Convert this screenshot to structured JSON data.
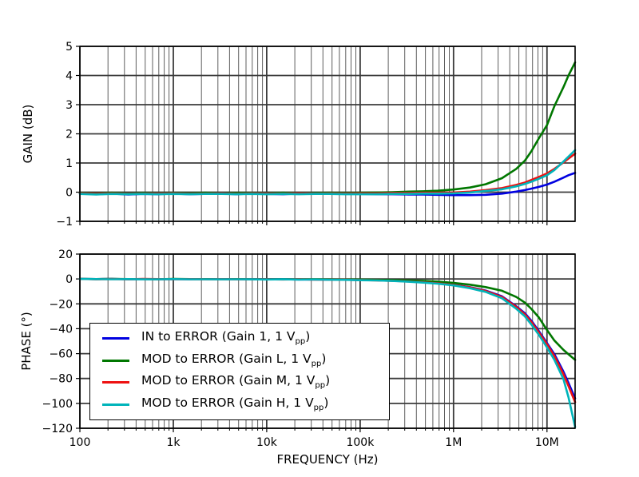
{
  "figure": {
    "background": "#ffffff",
    "frame_color": "#000000",
    "grid_major_color": "#3b3b3b",
    "grid_minor_color": "#5e5e5e"
  },
  "legend": {
    "items": [
      {
        "color": "#0000e0",
        "pre": "IN to ERROR (Gain 1, 1 V",
        "sub": "pp",
        "post": ")"
      },
      {
        "color": "#007700",
        "pre": "MOD to ERROR (Gain L, 1 V",
        "sub": "pp",
        "post": ")"
      },
      {
        "color": "#ee1111",
        "pre": "MOD to ERROR (Gain M, 1 V",
        "sub": "pp",
        "post": ")"
      },
      {
        "color": "#00b4ba",
        "pre": "MOD to ERROR (Gain H, 1 V",
        "sub": "pp",
        "post": ")"
      }
    ]
  },
  "chart_data": [
    {
      "type": "line",
      "title": "",
      "ylabel": "GAIN (dB)",
      "xlabel": "",
      "xscale": "log",
      "xlim": [
        100,
        20000000
      ],
      "ylim": [
        -1,
        5
      ],
      "grid": "on",
      "legend_position": "none",
      "yticks": {
        "values": [
          5,
          4,
          3,
          2,
          1,
          0,
          -1
        ],
        "labels": [
          "5",
          "4",
          "3",
          "2",
          "1",
          "0",
          "−1"
        ]
      },
      "xticks": {
        "values": [
          100,
          1000,
          10000,
          100000,
          1000000,
          10000000
        ],
        "labels": [
          "100",
          "1k",
          "10k",
          "100k",
          "1M",
          "10M"
        ],
        "show_labels": false
      },
      "x": [
        100,
        150,
        220,
        330,
        470,
        680,
        1000,
        1500,
        2200,
        3300,
        4700,
        6800,
        10000,
        15000,
        22000,
        33000,
        47000,
        68000,
        100000,
        150000,
        220000,
        330000,
        470000,
        680000,
        1000000,
        1500000,
        2200000,
        3300000,
        4700000,
        5800000,
        6800000,
        8200000,
        10000000,
        12000000,
        15000000,
        17000000,
        20000000
      ],
      "series": [
        {
          "name": "IN to ERROR (Gain 1, 1 Vpp)",
          "color": "#0000e0",
          "values": [
            -0.05,
            -0.07,
            -0.05,
            -0.08,
            -0.06,
            -0.07,
            -0.05,
            -0.07,
            -0.06,
            -0.05,
            -0.07,
            -0.05,
            -0.06,
            -0.07,
            -0.05,
            -0.06,
            -0.05,
            -0.06,
            -0.06,
            -0.07,
            -0.07,
            -0.08,
            -0.08,
            -0.09,
            -0.1,
            -0.1,
            -0.09,
            -0.05,
            0.02,
            0.07,
            0.12,
            0.18,
            0.26,
            0.36,
            0.5,
            0.58,
            0.66
          ]
        },
        {
          "name": "MOD to ERROR (Gain L, 1 Vpp)",
          "color": "#007700",
          "values": [
            -0.03,
            -0.05,
            -0.02,
            -0.05,
            -0.03,
            -0.04,
            -0.03,
            -0.04,
            -0.02,
            -0.04,
            -0.03,
            -0.03,
            -0.04,
            -0.02,
            -0.04,
            -0.03,
            -0.02,
            -0.03,
            -0.02,
            -0.01,
            0.0,
            0.02,
            0.03,
            0.05,
            0.09,
            0.16,
            0.27,
            0.48,
            0.8,
            1.08,
            1.4,
            1.85,
            2.3,
            2.95,
            3.6,
            4.0,
            4.45
          ]
        },
        {
          "name": "MOD to ERROR (Gain M, 1 Vpp)",
          "color": "#ee1111",
          "values": [
            -0.04,
            -0.06,
            -0.04,
            -0.06,
            -0.05,
            -0.05,
            -0.04,
            -0.06,
            -0.05,
            -0.04,
            -0.06,
            -0.04,
            -0.05,
            -0.05,
            -0.04,
            -0.05,
            -0.04,
            -0.05,
            -0.04,
            -0.04,
            -0.03,
            -0.03,
            -0.02,
            -0.02,
            -0.01,
            0.02,
            0.07,
            0.14,
            0.25,
            0.33,
            0.42,
            0.52,
            0.64,
            0.8,
            1.02,
            1.15,
            1.32
          ]
        },
        {
          "name": "MOD to ERROR (Gain H, 1 Vpp)",
          "color": "#00b4ba",
          "values": [
            -0.06,
            -0.08,
            -0.06,
            -0.07,
            -0.06,
            -0.07,
            -0.06,
            -0.07,
            -0.06,
            -0.06,
            -0.07,
            -0.06,
            -0.07,
            -0.06,
            -0.07,
            -0.06,
            -0.06,
            -0.07,
            -0.07,
            -0.07,
            -0.06,
            -0.06,
            -0.05,
            -0.05,
            -0.04,
            -0.01,
            0.04,
            0.1,
            0.2,
            0.28,
            0.36,
            0.46,
            0.58,
            0.76,
            1.05,
            1.22,
            1.44
          ]
        }
      ]
    },
    {
      "type": "line",
      "title": "",
      "ylabel": "PHASE (°)",
      "xlabel": "FREQUENCY (Hz)",
      "xscale": "log",
      "xlim": [
        100,
        20000000
      ],
      "ylim": [
        -120,
        20
      ],
      "grid": "on",
      "legend_position": "lower left",
      "yticks": {
        "values": [
          20,
          0,
          -20,
          -40,
          -60,
          -80,
          -100,
          -120
        ],
        "labels": [
          "20",
          "0",
          "−20",
          "−40",
          "−60",
          "−80",
          "−100",
          "−120"
        ]
      },
      "xticks": {
        "values": [
          100,
          1000,
          10000,
          100000,
          1000000,
          10000000
        ],
        "labels": [
          "100",
          "1k",
          "10k",
          "100k",
          "1M",
          "10M"
        ],
        "show_labels": true
      },
      "x": [
        100,
        150,
        220,
        330,
        470,
        680,
        1000,
        1500,
        2200,
        3300,
        4700,
        6800,
        10000,
        15000,
        22000,
        33000,
        47000,
        68000,
        100000,
        150000,
        220000,
        330000,
        470000,
        680000,
        1000000,
        1500000,
        2200000,
        3300000,
        4700000,
        5800000,
        6800000,
        8200000,
        10000000,
        12000000,
        15000000,
        17000000,
        20000000
      ],
      "series": [
        {
          "name": "IN to ERROR (Gain 1, 1 Vpp)",
          "color": "#0000e0",
          "values": [
            0,
            -0.1,
            0,
            -0.2,
            -0.1,
            -0.2,
            -0.1,
            -0.2,
            -0.1,
            -0.2,
            -0.2,
            -0.3,
            -0.3,
            -0.3,
            -0.4,
            -0.4,
            -0.5,
            -0.6,
            -0.8,
            -1.0,
            -1.4,
            -1.9,
            -2.5,
            -3.3,
            -4.6,
            -6.6,
            -9.3,
            -14.0,
            -22.0,
            -27.5,
            -33.5,
            -42.0,
            -51.5,
            -60.5,
            -74.5,
            -83.5,
            -96.0
          ]
        },
        {
          "name": "MOD to ERROR (Gain L, 1 Vpp)",
          "color": "#007700",
          "values": [
            0,
            -0.1,
            0,
            -0.1,
            -0.1,
            -0.2,
            0,
            -0.1,
            -0.1,
            -0.2,
            -0.1,
            -0.2,
            -0.2,
            -0.2,
            -0.3,
            -0.3,
            -0.3,
            -0.4,
            -0.5,
            -0.7,
            -0.9,
            -1.2,
            -1.6,
            -2.1,
            -3.2,
            -4.6,
            -6.5,
            -9.5,
            -14.5,
            -19.0,
            -24.0,
            -31.0,
            -41.0,
            -49.5,
            -57.0,
            -60.5,
            -65.0
          ]
        },
        {
          "name": "MOD to ERROR (Gain M, 1 Vpp)",
          "color": "#ee1111",
          "values": [
            0,
            -0.2,
            -0.1,
            -0.2,
            0,
            -0.1,
            -0.2,
            -0.1,
            -0.2,
            -0.1,
            -0.3,
            -0.2,
            -0.3,
            -0.4,
            -0.3,
            -0.5,
            -0.5,
            -0.6,
            -0.9,
            -1.1,
            -1.5,
            -2.0,
            -2.7,
            -3.5,
            -4.8,
            -6.8,
            -9.6,
            -14.5,
            -22.5,
            -28.5,
            -34.5,
            -43.0,
            -52.5,
            -62.0,
            -76.5,
            -86.0,
            -99.0
          ]
        },
        {
          "name": "MOD to ERROR (Gain H, 1 Vpp)",
          "color": "#00b4ba",
          "values": [
            0,
            -0.1,
            -0.2,
            -0.1,
            -0.2,
            -0.2,
            -0.1,
            -0.2,
            -0.2,
            -0.3,
            -0.2,
            -0.3,
            -0.4,
            -0.3,
            -0.5,
            -0.4,
            -0.6,
            -0.7,
            -1.0,
            -1.2,
            -1.6,
            -2.2,
            -2.9,
            -3.8,
            -5.2,
            -7.4,
            -10.4,
            -15.5,
            -24.0,
            -30.0,
            -36.5,
            -45.0,
            -55.0,
            -65.0,
            -80.5,
            -95.0,
            -119.0
          ]
        }
      ]
    }
  ]
}
